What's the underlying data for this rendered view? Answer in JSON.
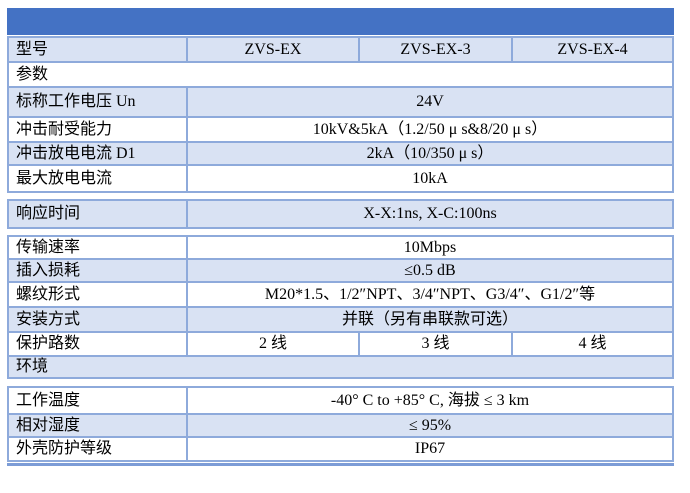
{
  "table": {
    "header_bar_color": "#4472C4",
    "band_color": "#D9E2F3",
    "border_color": "#8EAADB",
    "model_row": {
      "label": "型号",
      "values": [
        "ZVS-EX",
        "ZVS-EX-3",
        "ZVS-EX-4"
      ]
    },
    "section_parameters": {
      "label": "参数"
    },
    "rows": [
      {
        "label": "标称工作电压 Un",
        "value": "24V"
      },
      {
        "label": "冲击耐受能力",
        "value": "10kV&5kA（1.2/50 μ s&8/20 μ s）"
      },
      {
        "label": "冲击放电电流 D1",
        "value": "2kA（10/350 μ s）"
      },
      {
        "label": "最大放电电流",
        "value": "10kA"
      },
      {
        "label": "响应时间",
        "value": "X-X:1ns, X-C:100ns"
      },
      {
        "label": "传输速率",
        "value": "10Mbps"
      },
      {
        "label": "插入损耗",
        "value": "≤0.5 dB"
      },
      {
        "label": "螺纹形式",
        "value": "M20*1.5、1/2″NPT、3/4″NPT、G3/4″、G1/2″等"
      },
      {
        "label": "安装方式",
        "value": "并联（另有串联款可选）"
      }
    ],
    "protection_row": {
      "label": "保护路数",
      "values": [
        "2 线",
        "3 线",
        "4 线"
      ]
    },
    "section_environment": {
      "label": "环境"
    },
    "env_rows": [
      {
        "label": "工作温度",
        "value": "-40° C to +85° C, 海拔 ≤ 3 km"
      },
      {
        "label": "相对湿度",
        "value": "≤ 95%"
      },
      {
        "label": "外壳防护等级",
        "value": "IP67"
      }
    ]
  }
}
